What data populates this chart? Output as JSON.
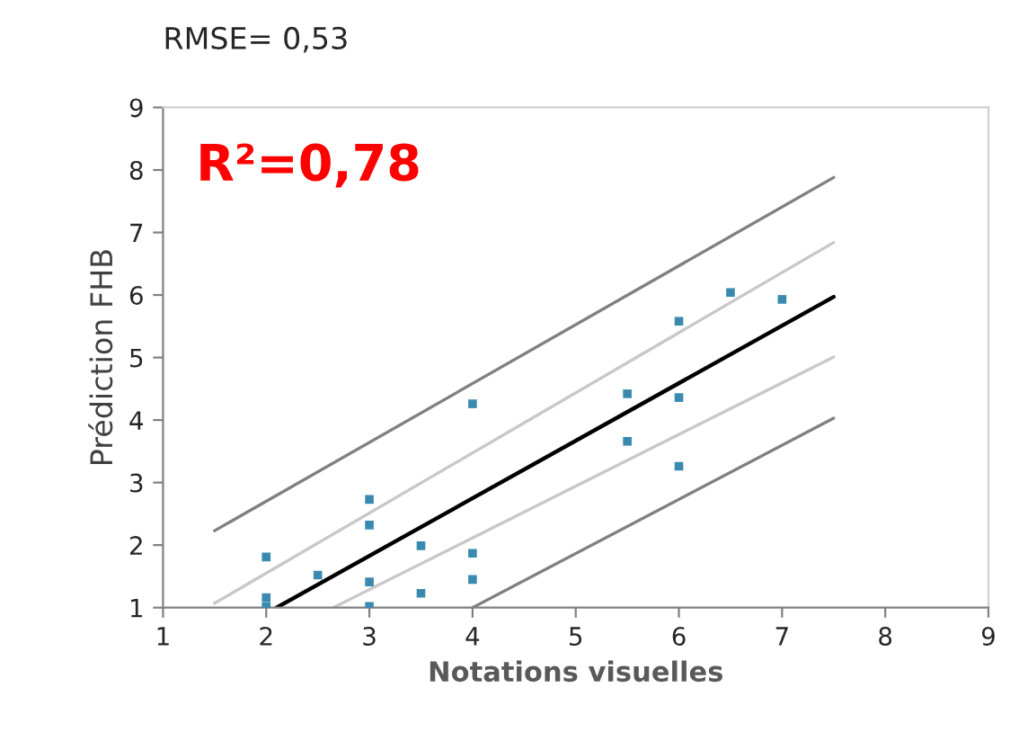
{
  "chart_data": {
    "type": "scatter",
    "title": "RMSE= 0,53",
    "xlabel": "Notations visuelles",
    "ylabel": "Prédiction FHB",
    "annotations": [
      "R²=0,78"
    ],
    "xlim": [
      1,
      9
    ],
    "ylim": [
      1,
      9
    ],
    "xticks": [
      1,
      2,
      3,
      4,
      5,
      6,
      7,
      8,
      9
    ],
    "yticks": [
      1,
      2,
      3,
      4,
      5,
      6,
      7,
      8,
      9
    ],
    "grid": false,
    "legend": false,
    "marker": "square",
    "series": [
      {
        "color": "#3a8ab0",
        "x": [
          2,
          2,
          2,
          2.5,
          3,
          3,
          3,
          3,
          3.5,
          3.5,
          4,
          4,
          4,
          5.5,
          5.5,
          6,
          6,
          6,
          6.5,
          7
        ],
        "values": [
          1.81,
          1.16,
          1.02,
          1.52,
          2.73,
          2.32,
          1.41,
          1.02,
          1.99,
          1.23,
          4.26,
          1.87,
          1.45,
          4.42,
          3.66,
          5.58,
          4.36,
          3.26,
          6.04,
          5.93
        ]
      },
      {
        "type": "line",
        "marker": "none",
        "color": "#000000",
        "x": [
          2.1,
          7.5
        ],
        "values": [
          1,
          5.97
        ]
      },
      {
        "type": "line",
        "marker": "none",
        "color": "#808080",
        "x": [
          1.5,
          7.5
        ],
        "values": [
          2.23,
          7.88
        ]
      },
      {
        "type": "line",
        "marker": "none",
        "color": "#c8c8c8",
        "x": [
          1.5,
          7.5
        ],
        "values": [
          1.07,
          6.84
        ]
      },
      {
        "type": "line",
        "marker": "none",
        "color": "#c8c8c8",
        "x": [
          2.65,
          7.5
        ],
        "values": [
          1,
          5.01
        ]
      },
      {
        "type": "line",
        "marker": "none",
        "color": "#808080",
        "x": [
          4,
          7.5
        ],
        "values": [
          1,
          4.03
        ]
      }
    ]
  }
}
